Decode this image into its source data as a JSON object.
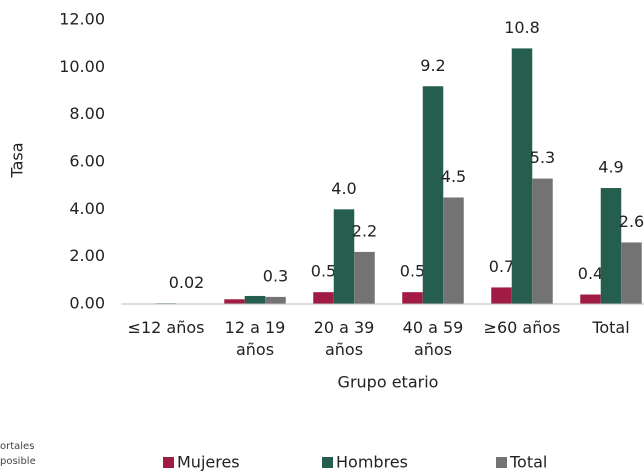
{
  "chart_data": {
    "type": "bar",
    "y_label": "Tasa",
    "x_label": "Grupo etario",
    "categories": [
      "≤12 años",
      "12 a 19 años",
      "20 a 39 años",
      "40 a 59 años",
      "≥60 años",
      "Total"
    ],
    "series": [
      {
        "name": "Mujeres",
        "color": "#a01c44",
        "values": [
          0.02,
          0.2,
          0.5,
          0.5,
          0.7,
          0.4
        ],
        "value_labels": [
          null,
          null,
          "0.5",
          "0.5",
          "0.7",
          "0.4"
        ]
      },
      {
        "name": "Hombres",
        "color": "#255d4f",
        "values": [
          0.03,
          0.34,
          4.0,
          9.2,
          10.8,
          4.9
        ],
        "value_labels": [
          null,
          null,
          "4.0",
          "9.2",
          "10.8",
          "4.9"
        ]
      },
      {
        "name": "Total",
        "color": "#737373",
        "values": [
          0.02,
          0.3,
          2.2,
          4.5,
          5.3,
          2.6
        ],
        "value_labels": [
          "0.02",
          "0.3",
          "2.2",
          "4.5",
          "5.3",
          "2.6"
        ]
      }
    ],
    "ylim": [
      0,
      12
    ],
    "yticks": [
      {
        "value": 0,
        "label": "0.00"
      },
      {
        "value": 2,
        "label": "2.00"
      },
      {
        "value": 4,
        "label": "4.00"
      },
      {
        "value": 6,
        "label": "6.00"
      },
      {
        "value": 8,
        "label": "8.00"
      },
      {
        "value": 10,
        "label": "10.00"
      },
      {
        "value": 12,
        "label": "12.00"
      }
    ],
    "grid": false,
    "legend": "bottom",
    "note_lines": [
      "ortales",
      "posible"
    ]
  }
}
